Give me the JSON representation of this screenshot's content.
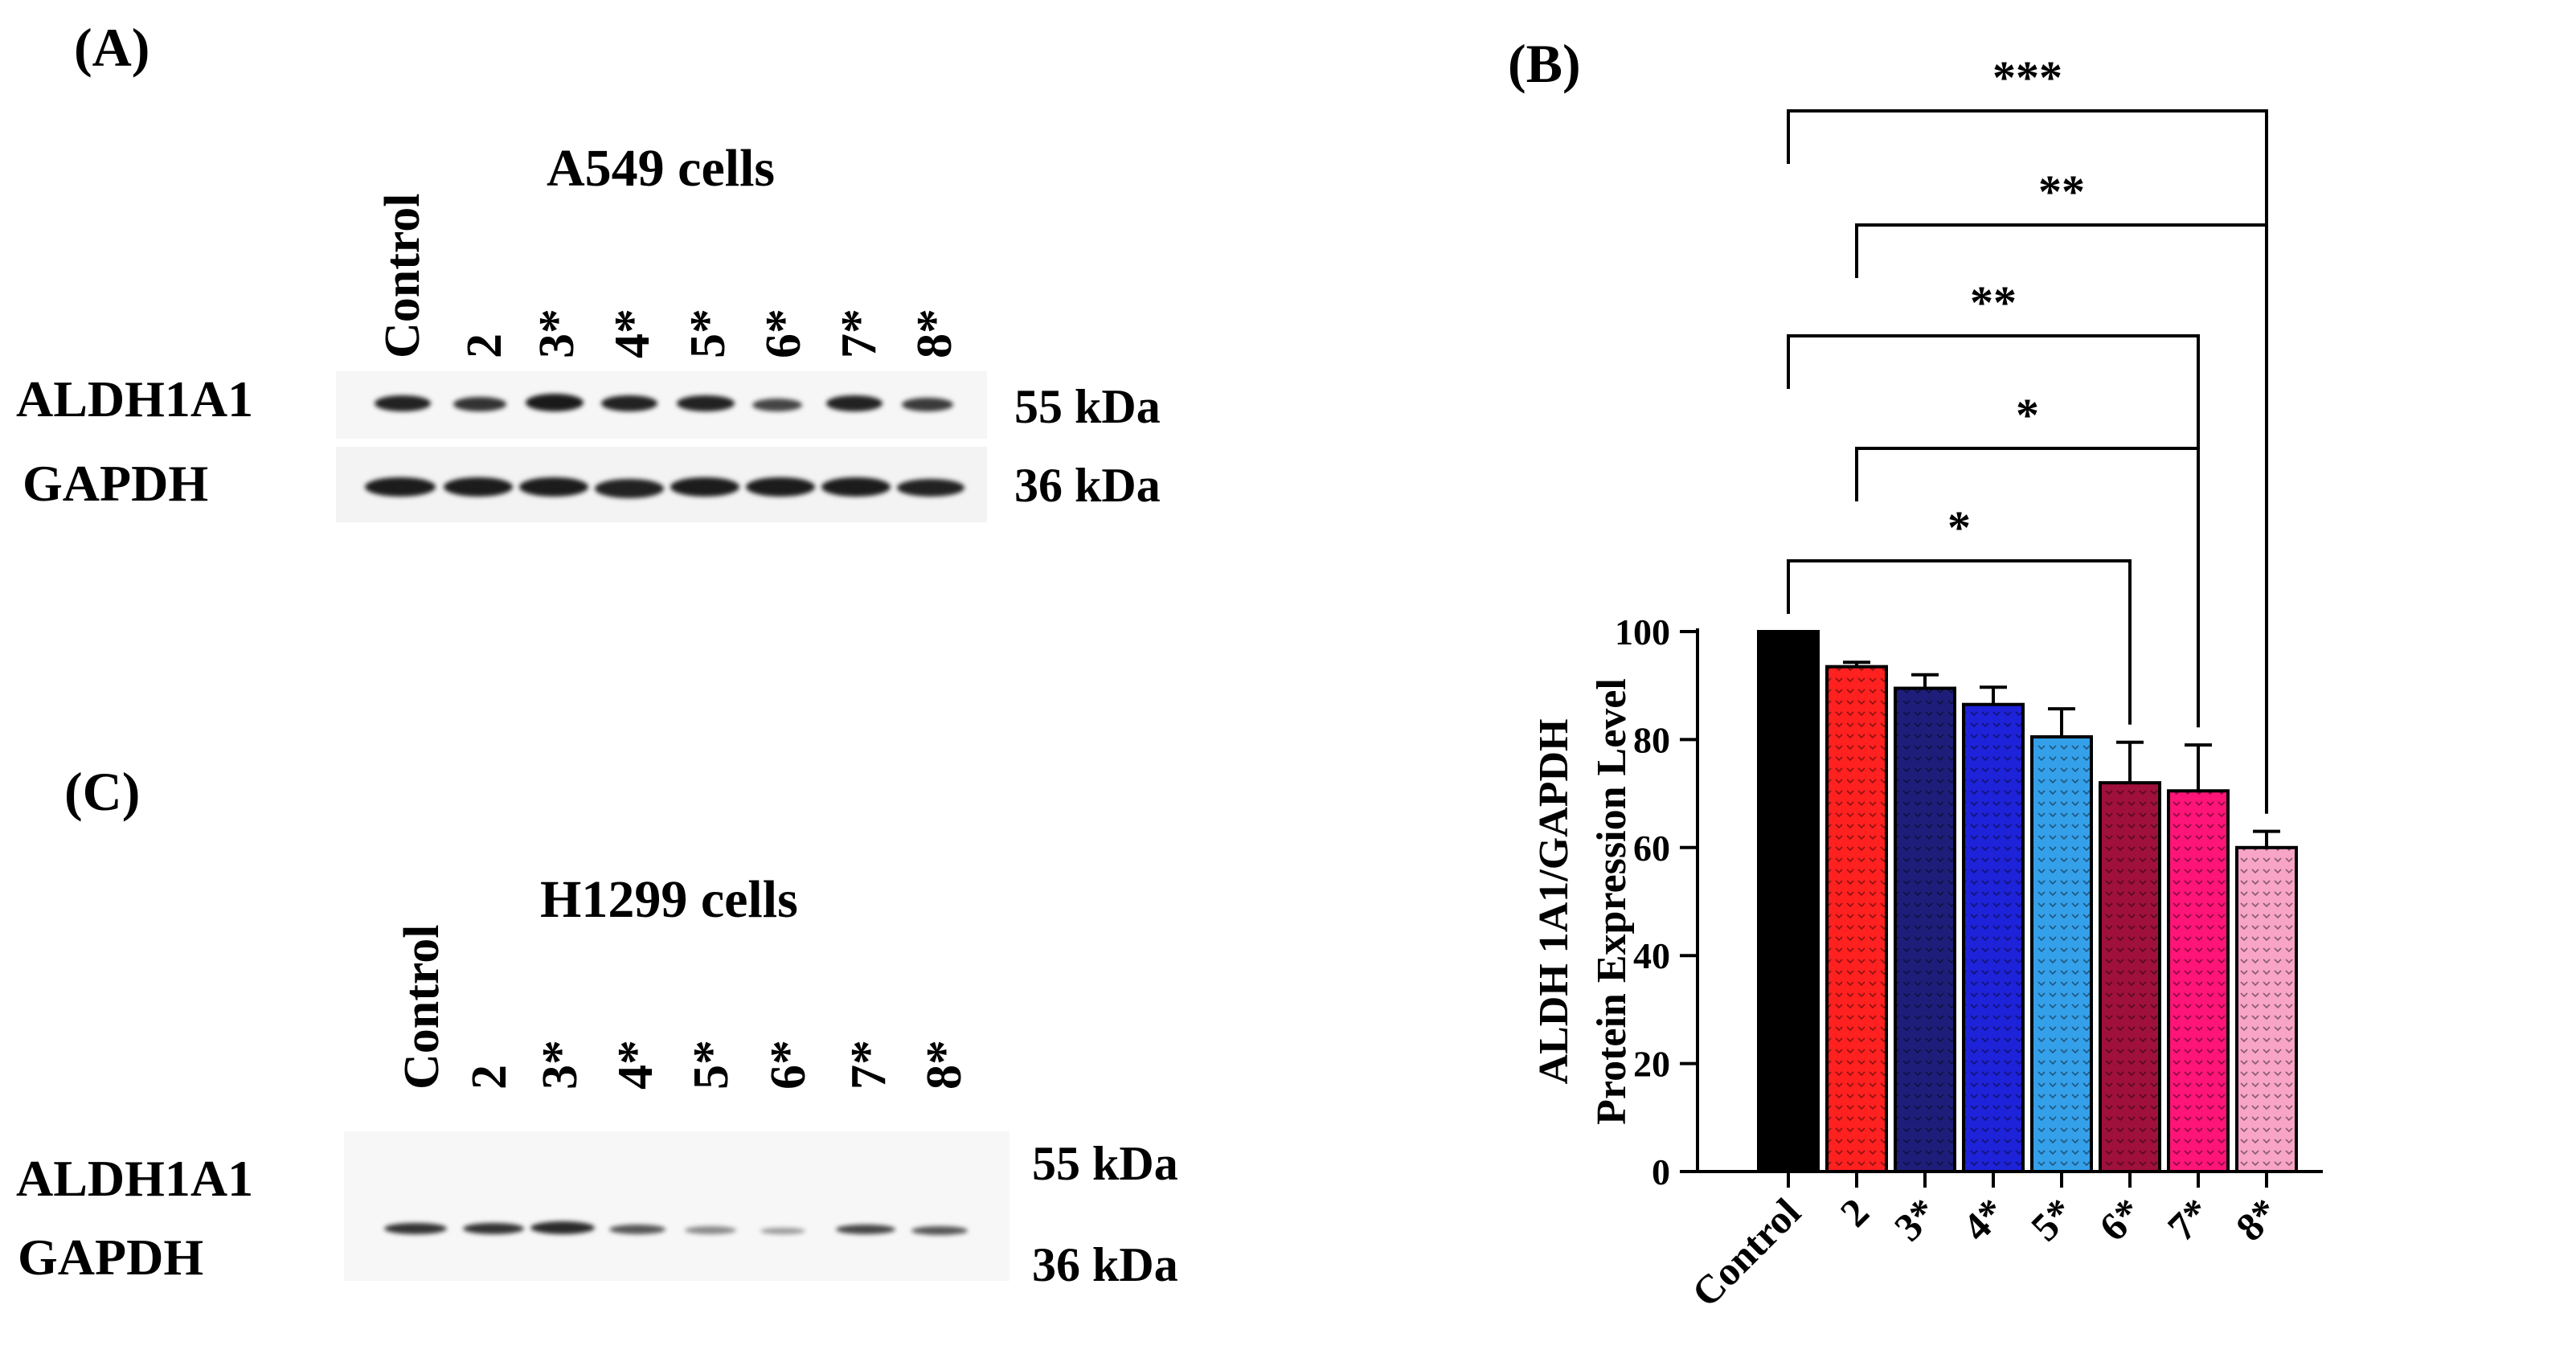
{
  "panels": {
    "a": {
      "label": "(A)",
      "title": "A549 cells",
      "lanes": [
        "Control",
        "2",
        "3*",
        "4*",
        "5*",
        "6*",
        "7*",
        "8*"
      ],
      "proteins": [
        "ALDH1A1",
        "GAPDH"
      ],
      "markers": [
        "55 kDa",
        "36 kDa"
      ]
    },
    "b": {
      "label": "(B)"
    },
    "c": {
      "label": "(C)",
      "title": "H1299 cells",
      "lanes": [
        "Control",
        "2",
        "3*",
        "4*",
        "5*",
        "6*",
        "7*",
        "8*"
      ],
      "proteins": [
        "ALDH1A1",
        "GAPDH"
      ],
      "markers": [
        "55 kDa",
        "36 kDa"
      ]
    }
  },
  "chart_data": {
    "type": "bar",
    "title": "",
    "xlabel": "",
    "ylabel": [
      "ALDH 1A1/GAPDH",
      "Protein Expression Level"
    ],
    "ylim": [
      0,
      100
    ],
    "yticks": [
      0,
      20,
      40,
      60,
      80,
      100
    ],
    "categories": [
      "Control",
      "2",
      "3*",
      "4*",
      "5*",
      "6*",
      "7*",
      "8*"
    ],
    "values": [
      100,
      93.5,
      89.5,
      86.5,
      80.5,
      72,
      70.5,
      60
    ],
    "errors": [
      0,
      0.8,
      2.5,
      3.2,
      5.2,
      7.5,
      8.5,
      3.0
    ],
    "colors": [
      "#000000",
      "#ff2020",
      "#1e1e7a",
      "#1e22d8",
      "#35a0ea",
      "#a0103c",
      "#ff1478",
      "#f7a4c6"
    ],
    "significance": [
      {
        "from": "Control",
        "to": "6*",
        "label": "*"
      },
      {
        "from": "2",
        "to": "7*",
        "label": "*"
      },
      {
        "from": "Control",
        "to": "7*",
        "label": "**"
      },
      {
        "from": "2",
        "to": "8*",
        "label": "**"
      },
      {
        "from": "Control",
        "to": "8*",
        "label": "***"
      }
    ]
  }
}
